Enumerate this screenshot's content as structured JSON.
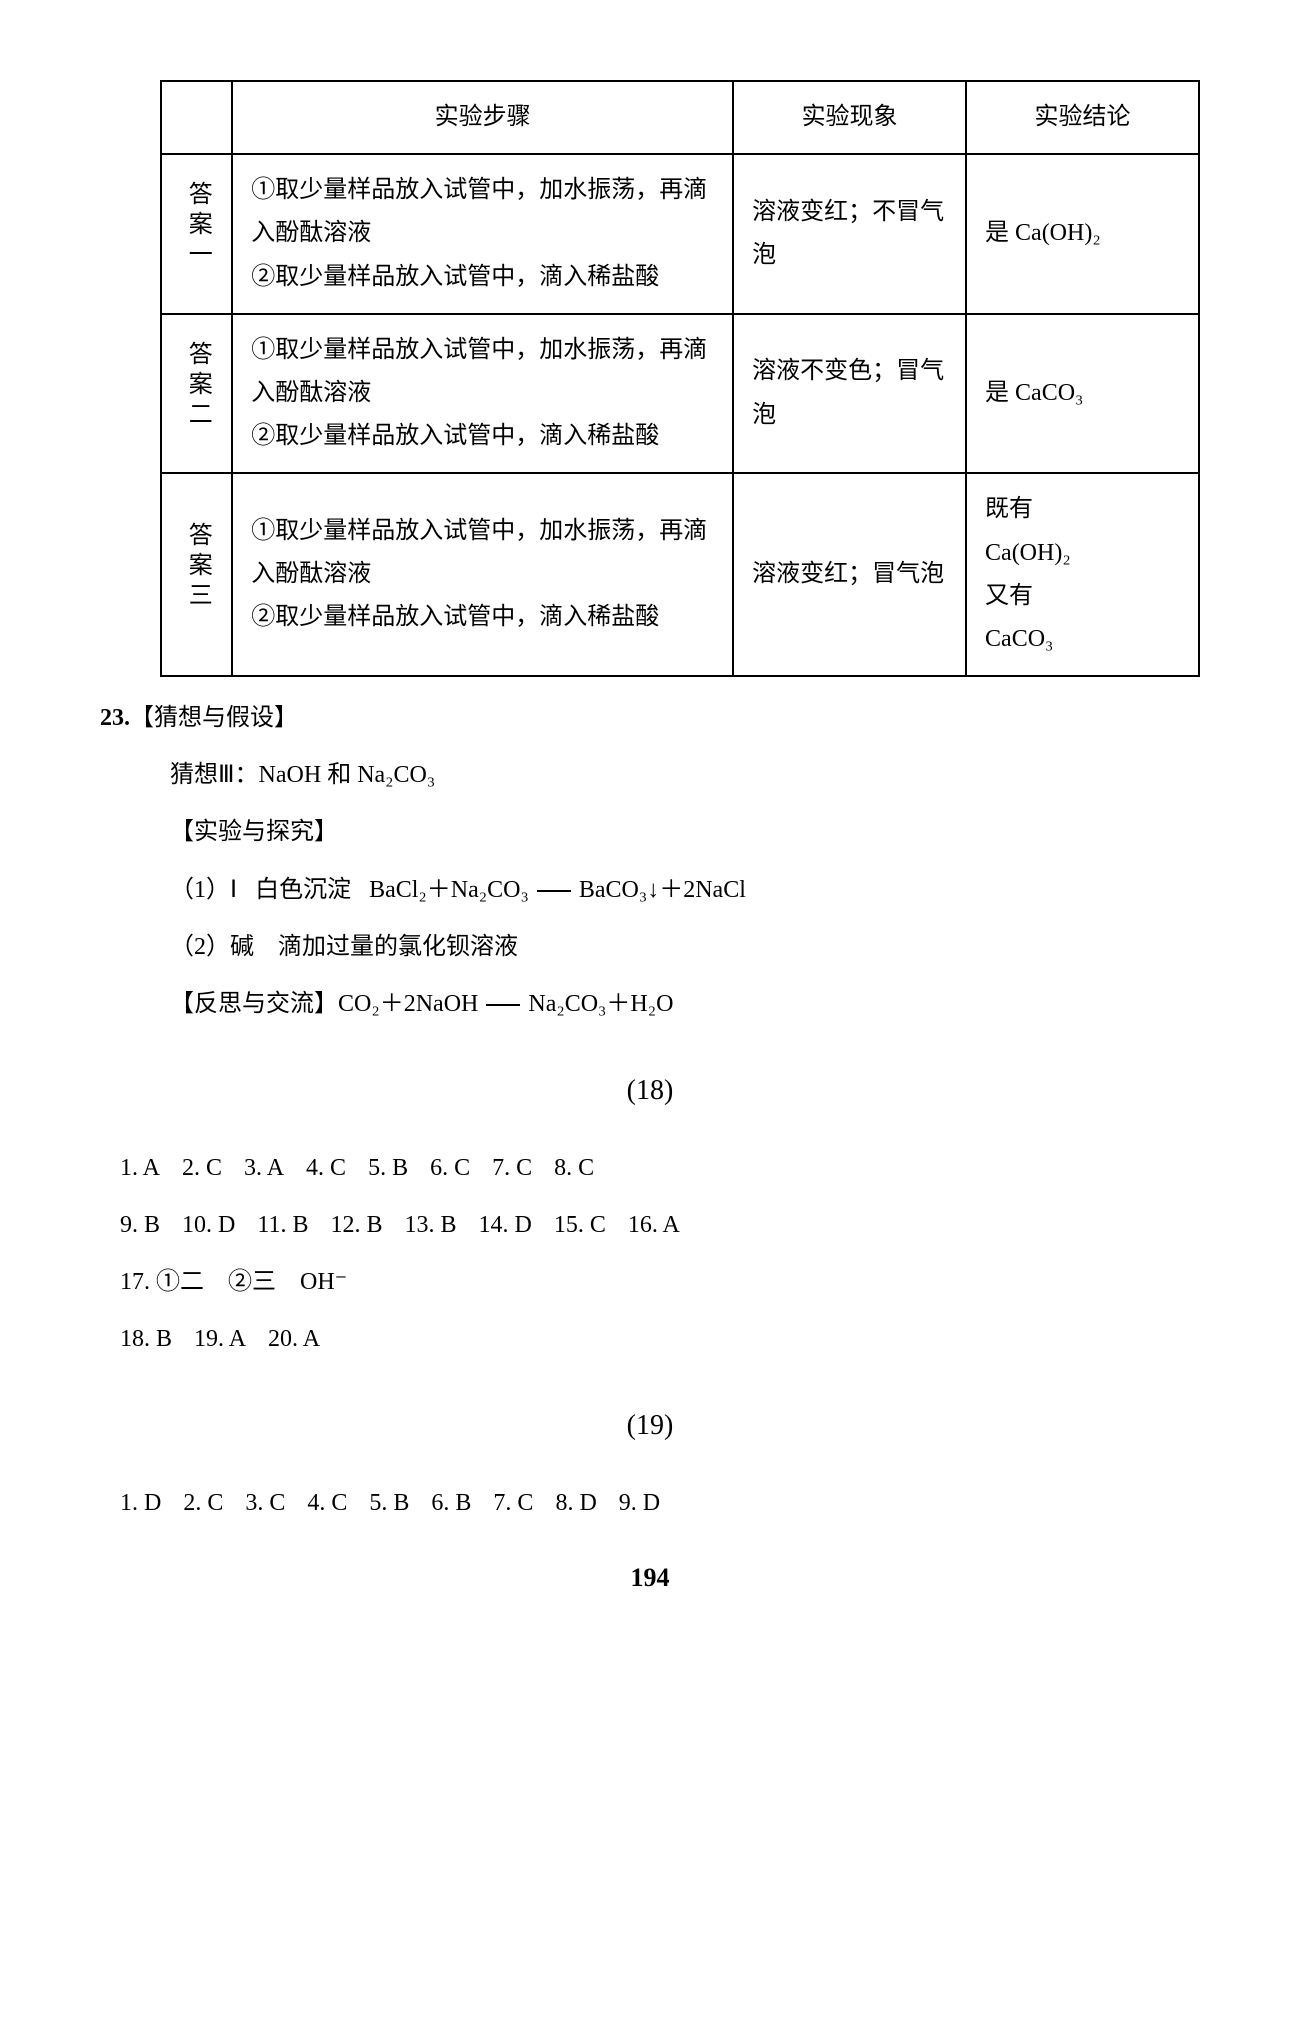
{
  "table": {
    "headers": [
      "",
      "实验步骤",
      "实验现象",
      "实验结论"
    ],
    "rows": [
      {
        "label": "答案一",
        "steps": "①取少量样品放入试管中，加水振荡，再滴入酚酞溶液\n②取少量样品放入试管中，滴入稀盐酸",
        "phenom": "溶液变红；不冒气泡",
        "conclusion": "是 Ca(OH)₂"
      },
      {
        "label": "答案二",
        "steps": "①取少量样品放入试管中，加水振荡，再滴入酚酞溶液\n②取少量样品放入试管中，滴入稀盐酸",
        "phenom": "溶液不变色；冒气泡",
        "conclusion": "是 CaCO₃"
      },
      {
        "label": "答案三",
        "steps": "①取少量样品放入试管中，加水振荡，再滴入酚酞溶液\n②取少量样品放入试管中，滴入稀盐酸",
        "phenom": "溶液变红；冒气泡",
        "conclusion": "既有\nCa(OH)₂\n又有\nCaCO₃"
      }
    ]
  },
  "q23": {
    "number": "23.",
    "section1_title": "【猜想与假设】",
    "guess_line": "猜想Ⅲ：NaOH 和 Na₂CO₃",
    "section2_title": "【实验与探究】",
    "line1a": "（1）Ⅰ",
    "line1b": "白色沉淀",
    "eq1_lhs": "BaCl₂＋Na₂CO₃",
    "eq1_rhs": "BaCO₃↓＋2NaCl",
    "line2": "（2）碱　滴加过量的氯化钡溶液",
    "section3_title": "【反思与交流】",
    "eq2_lhs": "CO₂＋2NaOH",
    "eq2_rhs": "Na₂CO₃＋H₂O"
  },
  "section18": {
    "heading": "(18)",
    "answers_row1": [
      {
        "n": "1.",
        "a": "A"
      },
      {
        "n": "2.",
        "a": "C"
      },
      {
        "n": "3.",
        "a": "A"
      },
      {
        "n": "4.",
        "a": "C"
      },
      {
        "n": "5.",
        "a": "B"
      },
      {
        "n": "6.",
        "a": "C"
      },
      {
        "n": "7.",
        "a": "C"
      },
      {
        "n": "8.",
        "a": "C"
      }
    ],
    "answers_row2": [
      {
        "n": "9.",
        "a": "B"
      },
      {
        "n": "10.",
        "a": "D"
      },
      {
        "n": "11.",
        "a": "B"
      },
      {
        "n": "12.",
        "a": "B"
      },
      {
        "n": "13.",
        "a": "B"
      },
      {
        "n": "14.",
        "a": "D"
      },
      {
        "n": "15.",
        "a": "C"
      },
      {
        "n": "16.",
        "a": "A"
      }
    ],
    "answers_row3": "17. ①二　②三　OH⁻",
    "answers_row4": [
      {
        "n": "18.",
        "a": "B"
      },
      {
        "n": "19.",
        "a": "A"
      },
      {
        "n": "20.",
        "a": "A"
      }
    ]
  },
  "section19": {
    "heading": "(19)",
    "answers_row1": [
      {
        "n": "1.",
        "a": "D"
      },
      {
        "n": "2.",
        "a": "C"
      },
      {
        "n": "3.",
        "a": "C"
      },
      {
        "n": "4.",
        "a": "C"
      },
      {
        "n": "5.",
        "a": "B"
      },
      {
        "n": "6.",
        "a": "B"
      },
      {
        "n": "7.",
        "a": "C"
      },
      {
        "n": "8.",
        "a": "D"
      },
      {
        "n": "9.",
        "a": "D"
      }
    ]
  },
  "page_number": "194"
}
